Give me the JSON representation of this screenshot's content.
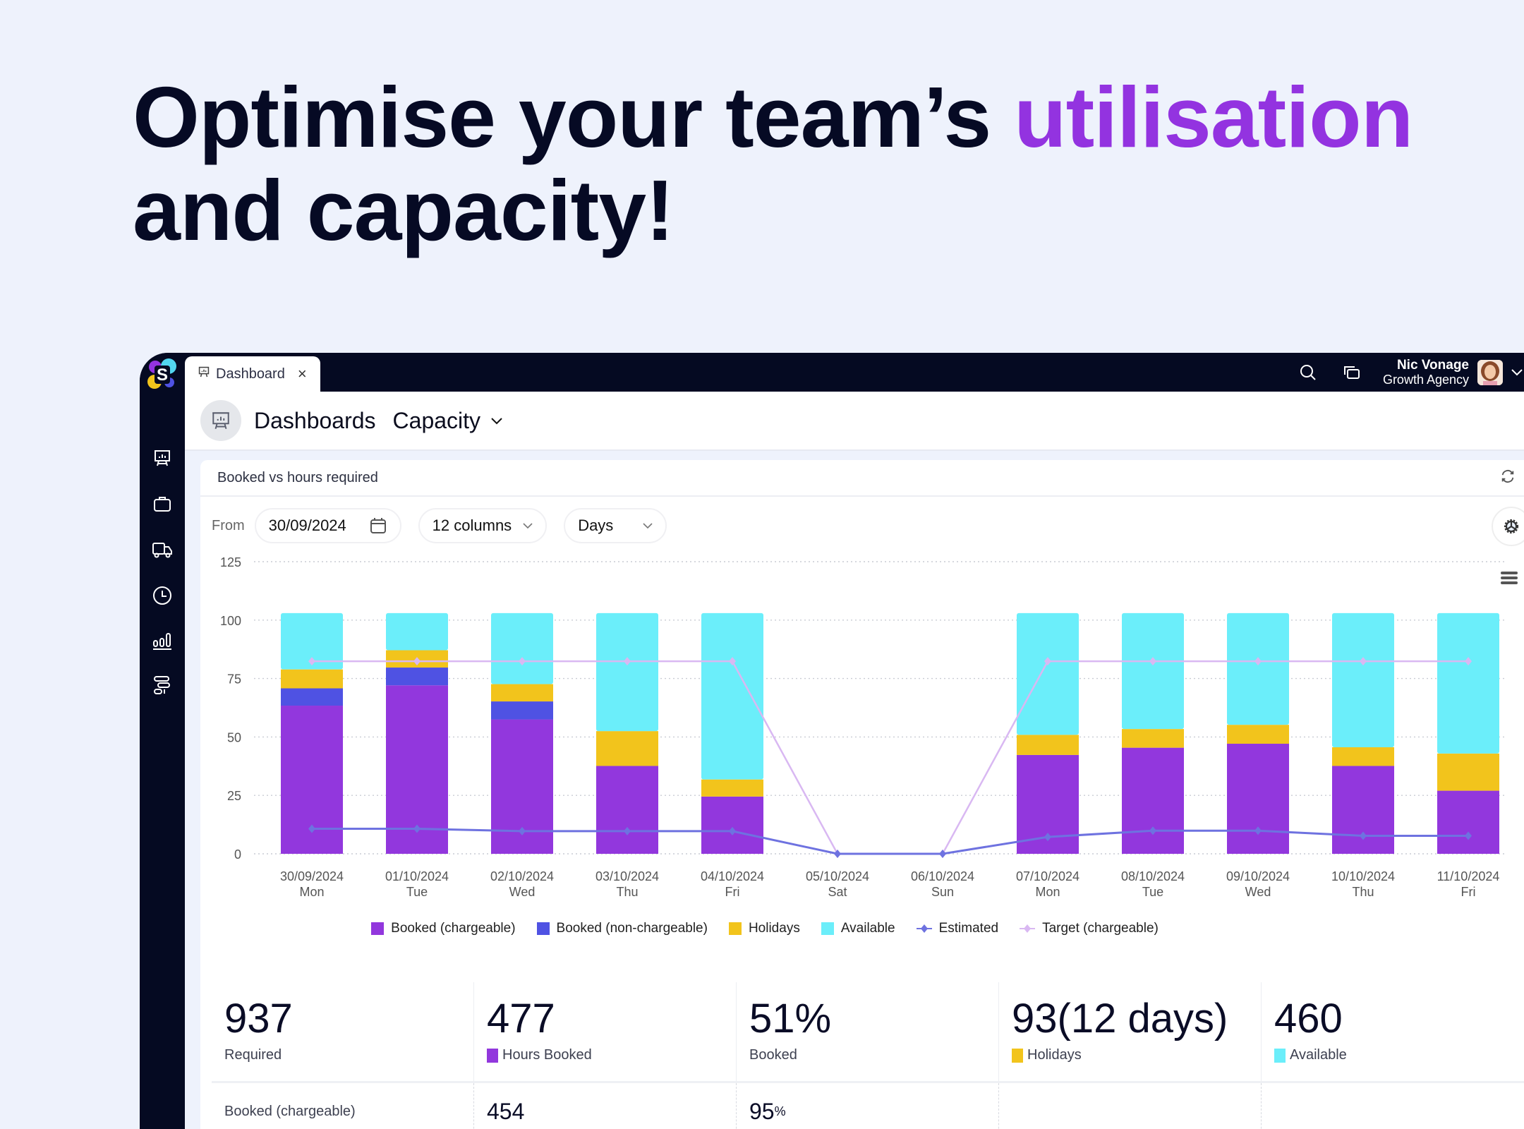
{
  "headline": {
    "part1": "Optimise your team’s ",
    "accent": "utilisation",
    "line2": "and capacity!"
  },
  "colors": {
    "accent": "#9333e0",
    "booked_chargeable": "#9237dd",
    "booked_non_chargeable": "#4f52e3",
    "holidays": "#f2c41c",
    "available": "#6beefa",
    "estimated": "#6e72e0",
    "target": "#d9b8f2"
  },
  "topbar": {
    "tab_label": "Dashboard",
    "tab_icon": "presentation-chart-icon",
    "search_icon": "search-icon",
    "windows_icon": "windows-icon",
    "user_name": "Nic Vonage",
    "user_org": "Growth Agency"
  },
  "sidebar": {
    "items": [
      {
        "icon": "dashboard-icon"
      },
      {
        "icon": "briefcase-icon"
      },
      {
        "icon": "truck-icon"
      },
      {
        "icon": "clock-icon"
      },
      {
        "icon": "bar-chart-icon"
      },
      {
        "icon": "gantt-icon"
      }
    ]
  },
  "header": {
    "title": "Dashboards",
    "subtitle": "Capacity"
  },
  "card": {
    "title": "Booked vs hours required",
    "from_label": "From",
    "date_value": "30/09/2024",
    "columns_value": "12 columns",
    "period_value": "Days"
  },
  "chart_data": {
    "type": "bar",
    "stacked": true,
    "title": "Booked vs hours required",
    "xlabel": "",
    "ylabel": "",
    "ylim": [
      0,
      125
    ],
    "yticks": [
      0,
      25,
      50,
      75,
      100,
      125
    ],
    "grid": true,
    "legend_position": "bottom",
    "categories": [
      {
        "date": "30/09/2024",
        "day": "Mon"
      },
      {
        "date": "01/10/2024",
        "day": "Tue"
      },
      {
        "date": "02/10/2024",
        "day": "Wed"
      },
      {
        "date": "03/10/2024",
        "day": "Thu"
      },
      {
        "date": "04/10/2024",
        "day": "Fri"
      },
      {
        "date": "05/10/2024",
        "day": "Sat"
      },
      {
        "date": "06/10/2024",
        "day": "Sun"
      },
      {
        "date": "07/10/2024",
        "day": "Mon"
      },
      {
        "date": "08/10/2024",
        "day": "Tue"
      },
      {
        "date": "09/10/2024",
        "day": "Wed"
      },
      {
        "date": "10/10/2024",
        "day": "Thu"
      },
      {
        "date": "11/10/2024",
        "day": "Fri"
      }
    ],
    "series": [
      {
        "name": "Booked (chargeable)",
        "kind": "bar",
        "color": "#9237dd",
        "values": [
          63.4,
          72.1,
          57.5,
          37.6,
          24.5,
          0,
          0,
          42.3,
          45.4,
          47.1,
          37.6,
          27.0
        ]
      },
      {
        "name": "Booked (non-chargeable)",
        "kind": "bar",
        "color": "#4f52e3",
        "values": [
          7.4,
          7.6,
          7.7,
          0,
          0,
          0,
          0,
          0,
          0,
          0,
          0,
          0
        ]
      },
      {
        "name": "Holidays",
        "kind": "bar",
        "color": "#f2c41c",
        "values": [
          8.1,
          7.4,
          7.4,
          14.9,
          7.3,
          0,
          0,
          8.6,
          8.0,
          8.1,
          8.0,
          15.9
        ]
      },
      {
        "name": "Available",
        "kind": "bar",
        "color": "#6beefa",
        "values": [
          24.1,
          15.9,
          30.4,
          50.5,
          71.2,
          0,
          0,
          52.1,
          49.6,
          47.8,
          57.4,
          60.1
        ]
      },
      {
        "name": "Estimated",
        "kind": "line",
        "color": "#6e72e0",
        "values": [
          10.7,
          10.7,
          9.7,
          9.7,
          9.7,
          0,
          0,
          7.2,
          9.9,
          9.9,
          7.7,
          7.7
        ]
      },
      {
        "name": "Target (chargeable)",
        "kind": "line",
        "color": "#d9b8f2",
        "values": [
          82.4,
          82.4,
          82.4,
          82.4,
          82.4,
          0,
          0,
          82.4,
          82.4,
          82.4,
          82.4,
          82.4
        ]
      }
    ]
  },
  "stats": [
    {
      "value": "937",
      "label": "Required",
      "swatch": null
    },
    {
      "value": "477",
      "label": "Hours Booked",
      "swatch": "#9237dd"
    },
    {
      "value": "51%",
      "label": "Booked",
      "swatch": null
    },
    {
      "value": "93(12 days)",
      "label": "Holidays",
      "swatch": "#f2c41c"
    },
    {
      "value": "460",
      "label": "Available",
      "swatch": "#6beefa"
    }
  ],
  "row2": {
    "label": "Booked (chargeable)",
    "value": "454",
    "pct_value": "95",
    "pct_unit": "%"
  }
}
